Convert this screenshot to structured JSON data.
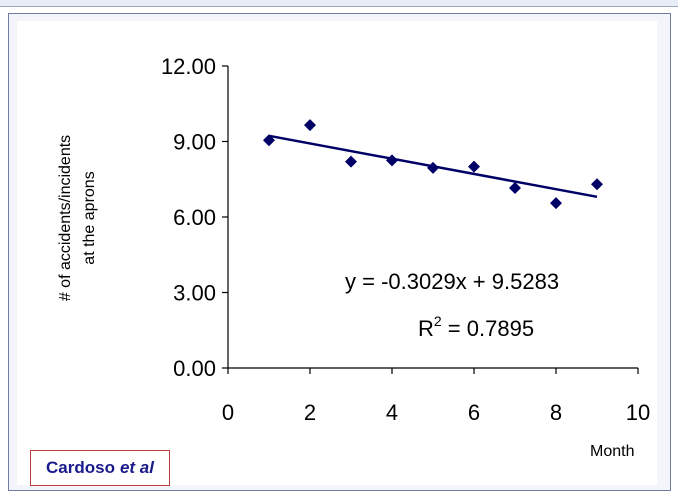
{
  "chart_data": {
    "type": "scatter",
    "xlabel": "Month",
    "ylabel_lines": [
      "# of accidents/incidents",
      "at the aprons"
    ],
    "xlim": [
      0,
      10
    ],
    "ylim": [
      0,
      12
    ],
    "x_ticks": [
      "0",
      "2",
      "4",
      "6",
      "8",
      "10"
    ],
    "y_ticks": [
      "0.00",
      "3.00",
      "6.00",
      "9.00",
      "12.00"
    ],
    "points": [
      {
        "x": 1,
        "y": 9.05
      },
      {
        "x": 2,
        "y": 9.65
      },
      {
        "x": 3,
        "y": 8.2
      },
      {
        "x": 4,
        "y": 8.25
      },
      {
        "x": 5,
        "y": 7.95
      },
      {
        "x": 6,
        "y": 8.0
      },
      {
        "x": 7,
        "y": 7.15
      },
      {
        "x": 8,
        "y": 6.55
      },
      {
        "x": 9,
        "y": 7.3
      }
    ],
    "trendline": {
      "slope": -0.3029,
      "intercept": 9.5283,
      "x_range": [
        1,
        9
      ]
    },
    "equation_text": "y = -0.3029x + 9.5283",
    "r2_label": "R",
    "r2_sup": "2",
    "r2_value": " = 0.7895",
    "marker_color": "#000066",
    "line_color": "#000066",
    "grid": false,
    "legend": "none"
  },
  "credit": {
    "name": "Cardoso",
    "italic": "et al"
  },
  "colors": {
    "frame": "#6f7da3",
    "credit_border": "#c04040",
    "credit_text": "#1a1a8c"
  }
}
